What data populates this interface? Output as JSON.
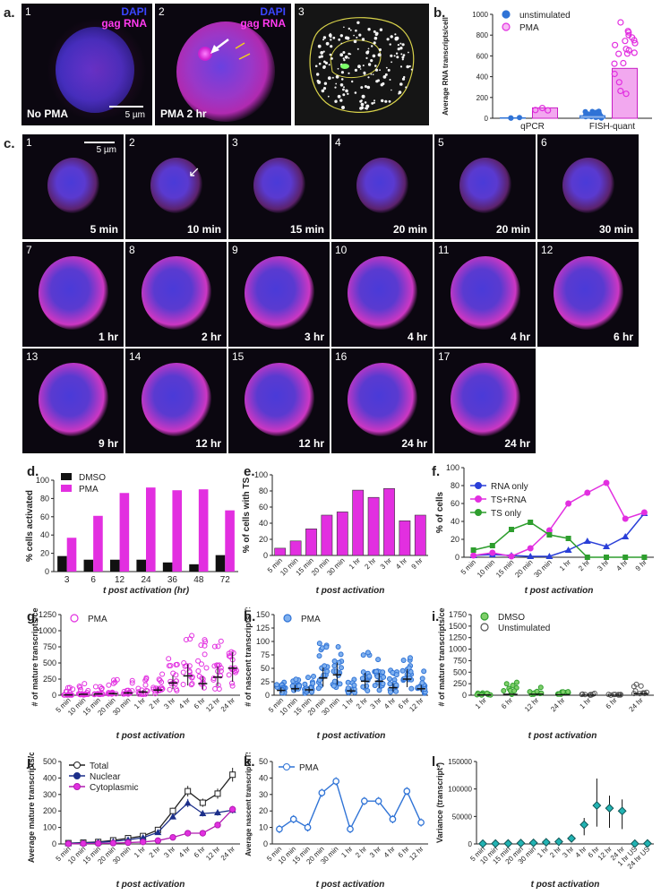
{
  "colors": {
    "pma": "#e22fe0",
    "dmso": "#111111",
    "blue": "#2f73d6",
    "green": "#2e9e2e",
    "cyan": "#22b3b3",
    "nuclear": "#1c2f8a"
  },
  "panel_a": {
    "label": "a.",
    "img1": {
      "num": "1",
      "legend1": "DAPI",
      "legend2": "gag RNA",
      "cap": "No PMA",
      "scale": "5 µm"
    },
    "img2": {
      "num": "2",
      "legend1": "DAPI",
      "legend2": "gag RNA",
      "cap": "PMA 2 hr"
    },
    "img3": {
      "num": "3"
    }
  },
  "panel_c": {
    "label": "c.",
    "scale": "5 µm",
    "tiles": [
      {
        "num": "1",
        "cap": "5 min"
      },
      {
        "num": "2",
        "cap": "10 min"
      },
      {
        "num": "3",
        "cap": "15 min"
      },
      {
        "num": "4",
        "cap": "20 min"
      },
      {
        "num": "5",
        "cap": "20 min"
      },
      {
        "num": "6",
        "cap": "30 min"
      },
      {
        "num": "7",
        "cap": "1 hr"
      },
      {
        "num": "8",
        "cap": "2 hr"
      },
      {
        "num": "9",
        "cap": "3 hr"
      },
      {
        "num": "10",
        "cap": "4 hr"
      },
      {
        "num": "11",
        "cap": "4 hr"
      },
      {
        "num": "12",
        "cap": "6 hr"
      },
      {
        "num": "13",
        "cap": "9 hr"
      },
      {
        "num": "14",
        "cap": "12 hr"
      },
      {
        "num": "15",
        "cap": "12 hr"
      },
      {
        "num": "16",
        "cap": "24 hr"
      },
      {
        "num": "17",
        "cap": "24 hr"
      }
    ]
  },
  "chart_data": [
    {
      "id": "b",
      "label": "b.",
      "type": "bar",
      "ylabel": "Average RNA transcripts/cell",
      "categories": [
        "qPCR",
        "FISH-quant"
      ],
      "series": [
        {
          "name": "unstimulated",
          "values": [
            5,
            25
          ]
        },
        {
          "name": "PMA",
          "values": [
            100,
            480
          ]
        }
      ],
      "ylim": [
        0,
        1000
      ],
      "yticks": [
        0,
        200,
        400,
        600,
        800,
        1000
      ],
      "legend": "top-left"
    },
    {
      "id": "d",
      "label": "d.",
      "type": "bar",
      "ylabel": "% cells activated",
      "xlabel": "t post activation (hr)",
      "categories": [
        "3",
        "6",
        "12",
        "24",
        "36",
        "48",
        "72"
      ],
      "series": [
        {
          "name": "DMSO",
          "values": [
            17,
            13,
            13,
            13,
            10,
            8,
            18
          ]
        },
        {
          "name": "PMA",
          "values": [
            37,
            61,
            86,
            92,
            89,
            90,
            67
          ]
        }
      ],
      "ylim": [
        0,
        100
      ],
      "yticks": [
        0,
        20,
        40,
        60,
        80,
        100
      ],
      "legend": "top-left"
    },
    {
      "id": "e",
      "label": "e.",
      "type": "bar",
      "ylabel": "% of cells with TS",
      "xlabel": "t post activation",
      "categories": [
        "5 min",
        "10 min",
        "15 min",
        "20 min",
        "30 min",
        "1 hr",
        "2 hr",
        "3 hr",
        "4 hr",
        "9 hr"
      ],
      "values": [
        9,
        18,
        33,
        50,
        54,
        81,
        72,
        83,
        43,
        50
      ],
      "ylim": [
        0,
        100
      ],
      "yticks": [
        0,
        20,
        40,
        60,
        80,
        100
      ]
    },
    {
      "id": "f",
      "label": "f.",
      "type": "line",
      "ylabel": "% of cells",
      "xlabel": "t post activation",
      "categories": [
        "5 min",
        "10 min",
        "15 min",
        "20 min",
        "30 min",
        "1 hr",
        "2 hr",
        "3 hr",
        "4 hr",
        "9 hr"
      ],
      "series": [
        {
          "name": "RNA only",
          "values": [
            2,
            3,
            2,
            1,
            1,
            8,
            18,
            12,
            23,
            49
          ]
        },
        {
          "name": "TS+RNA",
          "values": [
            2,
            5,
            1,
            10,
            30,
            60,
            72,
            83,
            43,
            50
          ]
        },
        {
          "name": "TS only",
          "values": [
            8,
            13,
            31,
            39,
            25,
            21,
            0,
            0,
            0,
            0
          ]
        }
      ],
      "ylim": [
        0,
        100
      ],
      "yticks": [
        0,
        20,
        40,
        60,
        80,
        100
      ],
      "legend": "top-left"
    },
    {
      "id": "g",
      "label": "g.",
      "type": "scatter",
      "ylabel": "# of mature transcripts/cell",
      "xlabel": "t post activation",
      "categories": [
        "5 min",
        "10 min",
        "15 min",
        "20 min",
        "30 min",
        "1 hr",
        "2 hr",
        "3 hr",
        "4 hr",
        "6 hr",
        "12 hr",
        "24 hr"
      ],
      "series": [
        {
          "name": "PMA",
          "medians": [
            5,
            15,
            20,
            25,
            35,
            50,
            80,
            190,
            300,
            180,
            280,
            420
          ],
          "maxes": [
            120,
            180,
            140,
            260,
            300,
            320,
            380,
            620,
            1060,
            900,
            850,
            1000
          ]
        }
      ],
      "ylim": [
        0,
        1250
      ],
      "yticks": [
        0,
        250,
        500,
        750,
        1000,
        1250
      ],
      "legend": "top-left"
    },
    {
      "id": "h",
      "label": "h.",
      "type": "scatter",
      "ylabel": "# of nascent transcripts/TS",
      "xlabel": "t post activation",
      "categories": [
        "5 min",
        "10 min",
        "15 min",
        "20 min",
        "30 min",
        "1 hr",
        "2 hr",
        "3 hr",
        "4 hr",
        "6 hr",
        "12 hr"
      ],
      "series": [
        {
          "name": "PMA",
          "medians": [
            9,
            12,
            10,
            32,
            38,
            8,
            26,
            26,
            14,
            30,
            12
          ],
          "maxes": [
            25,
            40,
            35,
            100,
            110,
            30,
            80,
            75,
            55,
            70,
            45
          ]
        }
      ],
      "ylim": [
        0,
        150
      ],
      "yticks": [
        0,
        25,
        50,
        75,
        100,
        125,
        150
      ],
      "legend": "top-left"
    },
    {
      "id": "i",
      "label": "i.",
      "type": "scatter",
      "ylabel": "# of mature transcripts/cell",
      "xlabel": "t post activation",
      "categories": [
        "1 hr",
        "6 hr",
        "12 hr",
        "24 hr",
        "1 hr",
        "6 hr",
        "24 hr"
      ],
      "series": [
        {
          "name": "DMSO",
          "medians": [
            5,
            20,
            20,
            10
          ],
          "maxes": [
            60,
            360,
            320,
            80
          ]
        },
        {
          "name": "Unstimulated",
          "medians": [
            2,
            2,
            30
          ],
          "maxes": [
            40,
            30,
            270
          ]
        }
      ],
      "ylim": [
        0,
        1750
      ],
      "yticks": [
        0,
        250,
        500,
        750,
        1000,
        1250,
        1500,
        1750
      ],
      "legend": "top-left"
    },
    {
      "id": "j",
      "label": "j.",
      "type": "line",
      "ylabel": "Average mature transcripts/cell",
      "xlabel": "t post activation",
      "categories": [
        "5 min",
        "10 min",
        "15 min",
        "20 min",
        "30 min",
        "1 hr",
        "2 hr",
        "3 hr",
        "4 hr",
        "6 hr",
        "12 hr",
        "24 hr"
      ],
      "series": [
        {
          "name": "Total",
          "values": [
            5,
            8,
            12,
            22,
            35,
            48,
            85,
            200,
            320,
            250,
            305,
            420
          ]
        },
        {
          "name": "Nuclear",
          "values": [
            4,
            6,
            10,
            15,
            25,
            38,
            70,
            165,
            248,
            185,
            190,
            205
          ]
        },
        {
          "name": "Cytoplasmic",
          "values": [
            1,
            2,
            3,
            5,
            8,
            12,
            20,
            40,
            65,
            65,
            115,
            210
          ]
        }
      ],
      "ylim": [
        0,
        500
      ],
      "yticks": [
        0,
        100,
        200,
        300,
        400,
        500
      ],
      "legend": "top-left"
    },
    {
      "id": "k",
      "label": "k.",
      "type": "line",
      "ylabel": "Average nascent transcripts/TS",
      "xlabel": "t post activation",
      "categories": [
        "5 min",
        "10 min",
        "15 min",
        "20 min",
        "30 min",
        "1 hr",
        "2 hr",
        "3 hr",
        "4 hr",
        "6 hr",
        "12 hr"
      ],
      "series": [
        {
          "name": "PMA",
          "values": [
            9,
            15,
            10,
            31,
            38,
            9,
            26,
            26,
            15,
            32,
            13
          ]
        }
      ],
      "ylim": [
        0,
        50
      ],
      "yticks": [
        0,
        10,
        20,
        30,
        40,
        50
      ],
      "legend": "top-left"
    },
    {
      "id": "l",
      "label": "l.",
      "type": "scatter",
      "ylabel": "Variance (transcript²)",
      "xlabel": "t post activation",
      "categories": [
        "5 min",
        "10 min",
        "15 min",
        "20 min",
        "30 min",
        "1 hr",
        "2 hr",
        "3 hr",
        "4 hr",
        "6 hr",
        "12 hr",
        "24 hr",
        "1 hr US",
        "24 hr US"
      ],
      "values": [
        500,
        600,
        800,
        1500,
        2000,
        3000,
        4000,
        10000,
        35000,
        70000,
        65000,
        60000,
        500,
        800
      ],
      "ylim": [
        0,
        150000
      ],
      "yticks": [
        0,
        50000,
        100000,
        150000
      ]
    }
  ]
}
